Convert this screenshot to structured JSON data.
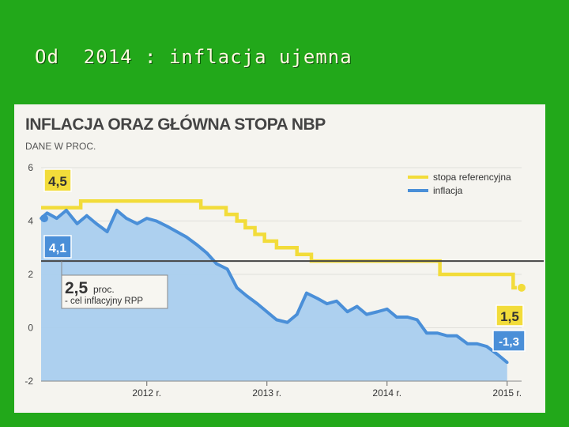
{
  "slide": {
    "title": "Od  2014 : inflacja ujemna"
  },
  "chart_data": {
    "type": "line",
    "title": "INFLACJA ORAZ GŁÓWNA STOPA NBP",
    "subtitle": "DANE W PROC.",
    "ylim": [
      -2,
      6
    ],
    "y_ticks": [
      "6",
      "4",
      "2",
      "0",
      "-2"
    ],
    "x_ticks": [
      {
        "label": "2012 r.",
        "t": 2012.0
      },
      {
        "label": "2013 r.",
        "t": 2013.0
      },
      {
        "label": "2014 r.",
        "t": 2014.0
      },
      {
        "label": "2015 r.",
        "t": 2015.0
      }
    ],
    "legend_position": "top-right",
    "series": [
      {
        "name": "stopa referencyjna",
        "color": "#f2dc3a",
        "step": true,
        "points": [
          [
            2011.12,
            4.5
          ],
          [
            2011.45,
            4.75
          ],
          [
            2012.45,
            4.5
          ],
          [
            2012.58,
            4.5
          ],
          [
            2012.66,
            4.25
          ],
          [
            2012.75,
            4.0
          ],
          [
            2012.82,
            3.75
          ],
          [
            2012.9,
            3.5
          ],
          [
            2012.98,
            3.25
          ],
          [
            2013.08,
            3.0
          ],
          [
            2013.25,
            2.75
          ],
          [
            2013.37,
            2.5
          ],
          [
            2014.44,
            2.5
          ],
          [
            2014.44,
            2.0
          ],
          [
            2015.05,
            2.0
          ],
          [
            2015.05,
            1.5
          ],
          [
            2015.08,
            1.5
          ]
        ]
      },
      {
        "name": "inflacja",
        "color": "#4a8fd8",
        "fill": "#a9cdee",
        "points": [
          [
            2011.12,
            4.1
          ],
          [
            2011.17,
            4.3
          ],
          [
            2011.25,
            4.1
          ],
          [
            2011.33,
            4.4
          ],
          [
            2011.42,
            3.9
          ],
          [
            2011.5,
            4.2
          ],
          [
            2011.58,
            3.9
          ],
          [
            2011.67,
            3.6
          ],
          [
            2011.75,
            4.4
          ],
          [
            2011.83,
            4.1
          ],
          [
            2011.92,
            3.9
          ],
          [
            2012.0,
            4.1
          ],
          [
            2012.08,
            4.0
          ],
          [
            2012.17,
            3.8
          ],
          [
            2012.25,
            3.6
          ],
          [
            2012.33,
            3.4
          ],
          [
            2012.42,
            3.1
          ],
          [
            2012.5,
            2.8
          ],
          [
            2012.58,
            2.4
          ],
          [
            2012.67,
            2.2
          ],
          [
            2012.75,
            1.5
          ],
          [
            2012.83,
            1.2
          ],
          [
            2012.92,
            0.9
          ],
          [
            2013.0,
            0.6
          ],
          [
            2013.08,
            0.3
          ],
          [
            2013.17,
            0.2
          ],
          [
            2013.25,
            0.5
          ],
          [
            2013.33,
            1.3
          ],
          [
            2013.42,
            1.1
          ],
          [
            2013.5,
            0.9
          ],
          [
            2013.58,
            1.0
          ],
          [
            2013.67,
            0.6
          ],
          [
            2013.75,
            0.8
          ],
          [
            2013.83,
            0.5
          ],
          [
            2013.92,
            0.6
          ],
          [
            2014.0,
            0.7
          ],
          [
            2014.08,
            0.4
          ],
          [
            2014.17,
            0.4
          ],
          [
            2014.25,
            0.3
          ],
          [
            2014.33,
            -0.2
          ],
          [
            2014.42,
            -0.2
          ],
          [
            2014.5,
            -0.3
          ],
          [
            2014.58,
            -0.3
          ],
          [
            2014.67,
            -0.6
          ],
          [
            2014.75,
            -0.6
          ],
          [
            2014.83,
            -0.7
          ],
          [
            2014.92,
            -1.0
          ],
          [
            2015.0,
            -1.3
          ]
        ]
      }
    ],
    "target_line": {
      "value": 2.5,
      "color": "#444444"
    },
    "annotations": {
      "ref_start": "4,5",
      "infl_start": "4,1",
      "target_value": "2,5",
      "target_unit": "proc.",
      "target_desc": "- cel inflacyjny RPP",
      "ref_end": "1,5",
      "infl_end": "-1,3"
    }
  }
}
